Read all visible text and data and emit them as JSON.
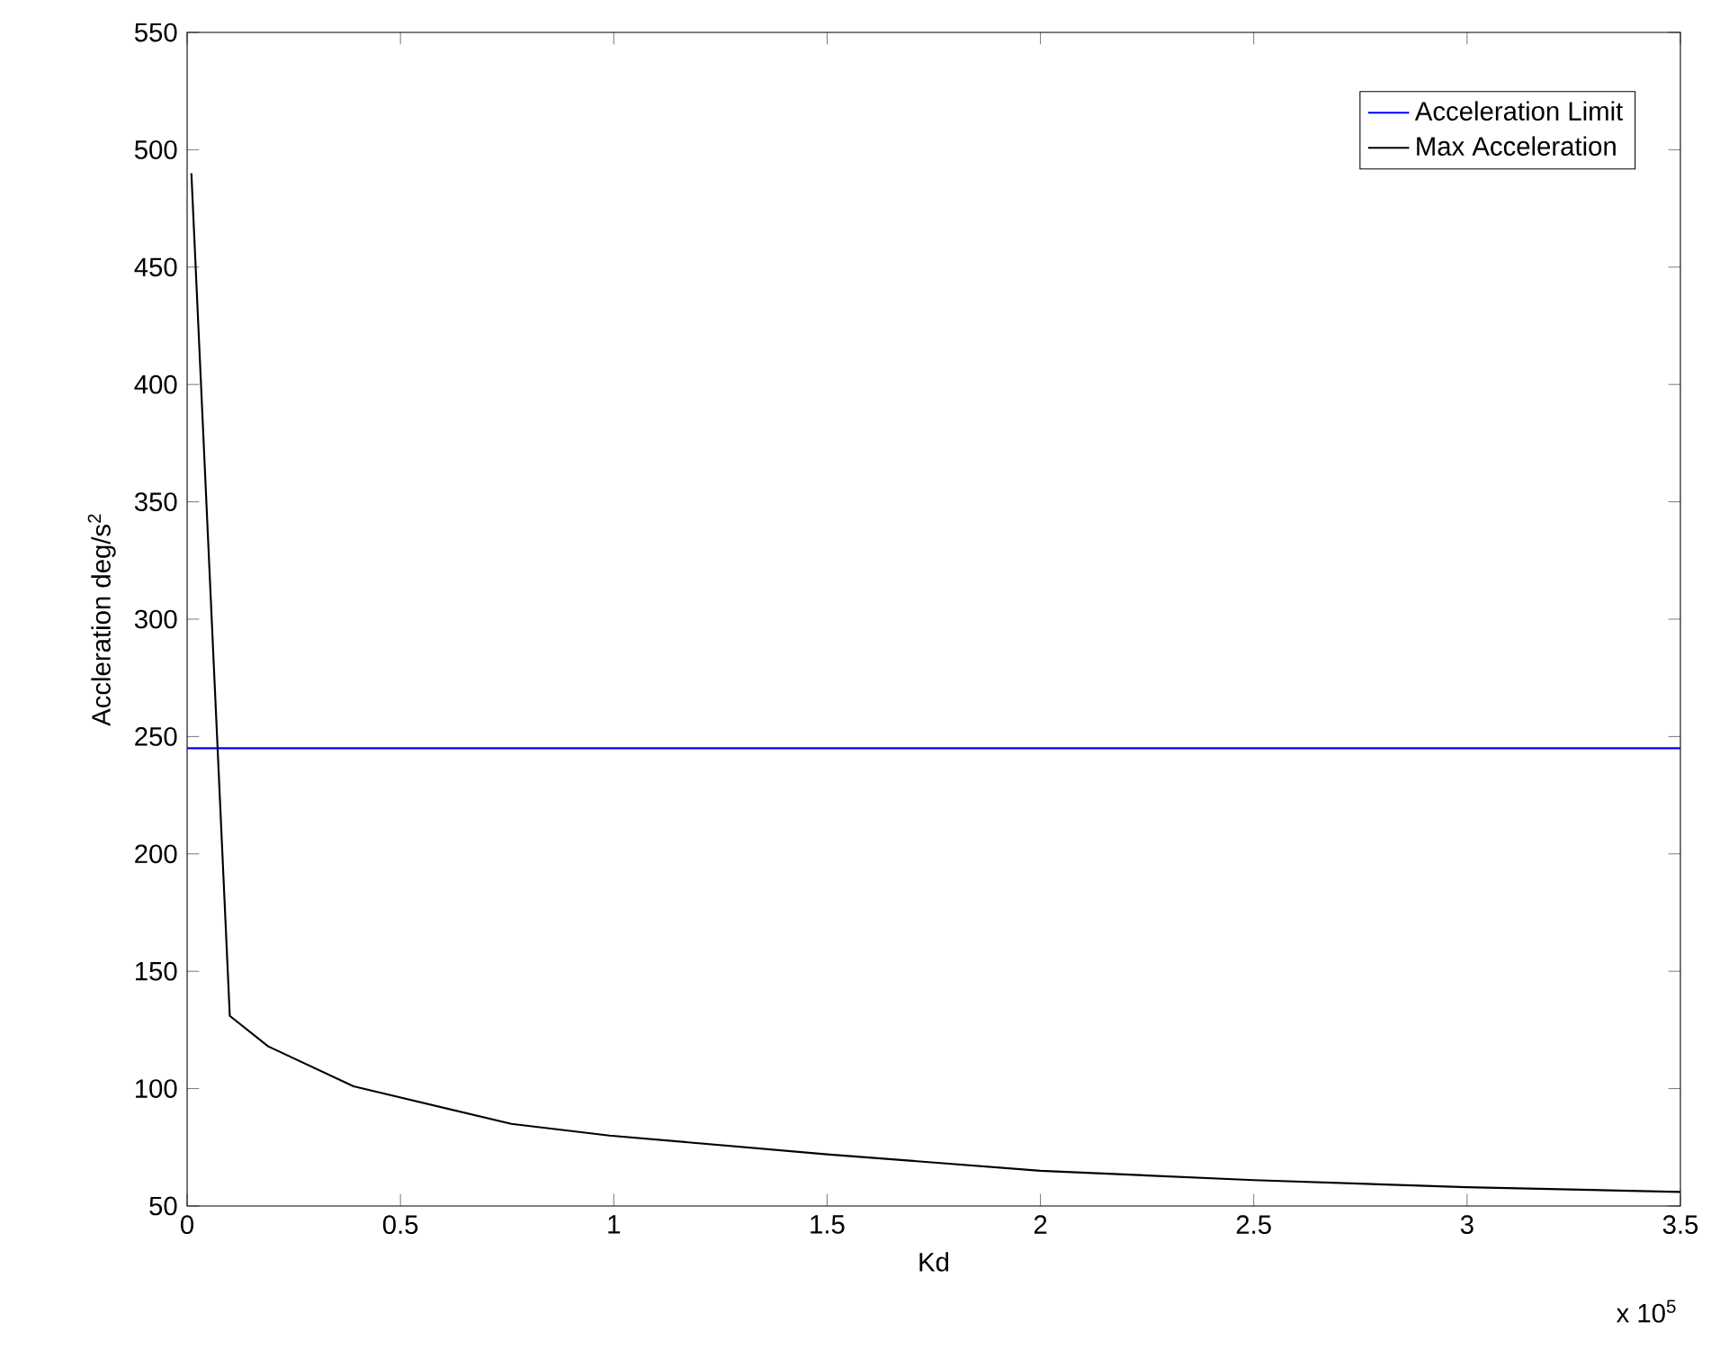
{
  "chart_data": {
    "type": "line",
    "xlabel": "Kd",
    "ylabel": "Accleration deg/s$^{2}$",
    "annotations": [
      "x 10$^{5}$"
    ],
    "series": [
      {
        "name": "Acceleration Limit",
        "color": "#0000ff",
        "x": [
          0,
          3.5
        ],
        "values": [
          245,
          245
        ]
      },
      {
        "name": "Max Acceleration",
        "color": "#000000",
        "x": [
          0.01,
          0.1,
          0.19,
          0.39,
          0.76,
          0.99,
          1.5,
          2.0,
          2.5,
          3.0,
          3.5
        ],
        "values": [
          490,
          131,
          118,
          101,
          85,
          80,
          72,
          65,
          61,
          58,
          56
        ]
      }
    ],
    "xlim": [
      0,
      3.5
    ],
    "ylim": [
      50,
      550
    ],
    "xticks": [
      0,
      0.5,
      1,
      1.5,
      2,
      2.5,
      3,
      3.5
    ],
    "yticks": [
      50,
      100,
      150,
      200,
      250,
      300,
      350,
      400,
      450,
      500,
      550
    ],
    "grid": false,
    "legend": "top right",
    "marker": "none",
    "line_style": "solid"
  }
}
